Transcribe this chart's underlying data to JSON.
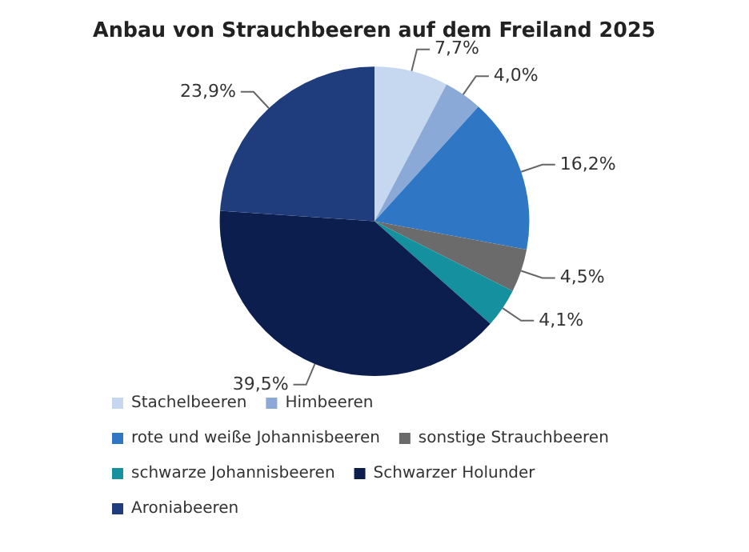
{
  "chart_data": {
    "type": "pie",
    "title": "Anbau von Strauchbeeren auf dem Freiland 2025",
    "categories": [
      "Stachelbeeren",
      "Himbeeren",
      "rote und weiße Johannisbeeren",
      "sonstige Strauchbeeren",
      "schwarze Johannisbeeren",
      "Schwarzer Holunder",
      "Aroniabeeren"
    ],
    "values": [
      7.7,
      4.0,
      16.2,
      4.5,
      4.1,
      39.5,
      23.9
    ],
    "value_labels": [
      "7,7%",
      "4,0%",
      "16,2%",
      "4,5%",
      "4,1%",
      "39,5%",
      "23,9%"
    ],
    "colors": [
      "#c5d8ef",
      "#8aa9d6",
      "#2f77c4",
      "#6b6b6b",
      "#14909e",
      "#0c1e4e",
      "#1f3c7c"
    ],
    "legend": "bottom"
  }
}
